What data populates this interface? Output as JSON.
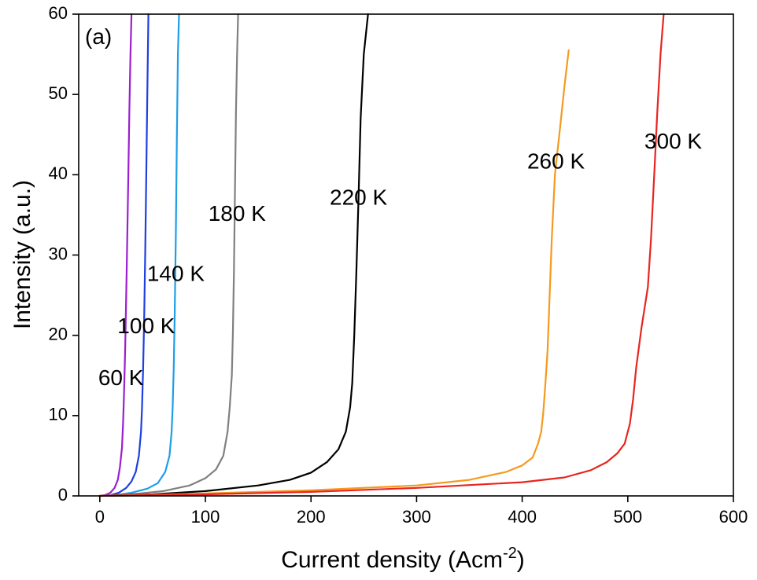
{
  "chart_data": {
    "type": "line",
    "panel_label": "(a)",
    "xlabel": "Current density (Acm",
    "xlabel_sup": "-2",
    "xlabel_end": ")",
    "ylabel": "Intensity (a.u.)",
    "xlim": [
      -20,
      600
    ],
    "ylim": [
      0,
      60
    ],
    "xticks": [
      0,
      100,
      200,
      300,
      400,
      500,
      600
    ],
    "yticks": [
      0,
      10,
      20,
      30,
      40,
      50,
      60
    ],
    "grid": false,
    "series": [
      {
        "name": "60 K",
        "color": "#9b1fd0",
        "label_at": [
          20,
          14.5
        ],
        "points": [
          [
            0,
            0
          ],
          [
            5,
            0.1
          ],
          [
            10,
            0.4
          ],
          [
            14,
            1
          ],
          [
            17,
            2
          ],
          [
            19,
            3.5
          ],
          [
            21,
            6
          ],
          [
            22,
            9
          ],
          [
            23,
            13
          ],
          [
            24,
            18
          ],
          [
            25,
            25
          ],
          [
            26,
            32
          ],
          [
            27,
            40
          ],
          [
            28,
            48
          ],
          [
            29,
            55
          ],
          [
            30,
            60
          ]
        ]
      },
      {
        "name": "100 K",
        "color": "#1f3fe0",
        "label_at": [
          44,
          21
        ],
        "points": [
          [
            0,
            0
          ],
          [
            10,
            0.1
          ],
          [
            18,
            0.4
          ],
          [
            25,
            1
          ],
          [
            30,
            1.8
          ],
          [
            34,
            3
          ],
          [
            37,
            5
          ],
          [
            39,
            8
          ],
          [
            40,
            11
          ],
          [
            41,
            16
          ],
          [
            42,
            22
          ],
          [
            43,
            30
          ],
          [
            44,
            40
          ],
          [
            45,
            50
          ],
          [
            46,
            60
          ]
        ]
      },
      {
        "name": "140 K",
        "color": "#1e9ee8",
        "label_at": [
          72,
          27.5
        ],
        "points": [
          [
            0,
            0
          ],
          [
            15,
            0.1
          ],
          [
            30,
            0.4
          ],
          [
            45,
            0.9
          ],
          [
            55,
            1.6
          ],
          [
            62,
            3
          ],
          [
            66,
            5
          ],
          [
            68,
            8
          ],
          [
            69,
            11
          ],
          [
            70,
            16
          ],
          [
            71,
            23
          ],
          [
            72,
            33
          ],
          [
            73,
            45
          ],
          [
            74,
            55
          ],
          [
            75,
            60
          ]
        ]
      },
      {
        "name": "180 K",
        "color": "#808080",
        "label_at": [
          130,
          35
        ],
        "points": [
          [
            0,
            0
          ],
          [
            30,
            0.2
          ],
          [
            60,
            0.6
          ],
          [
            85,
            1.3
          ],
          [
            100,
            2.2
          ],
          [
            110,
            3.3
          ],
          [
            117,
            5
          ],
          [
            121,
            8
          ],
          [
            123,
            11
          ],
          [
            125,
            15
          ],
          [
            126,
            20
          ],
          [
            127,
            28
          ],
          [
            128,
            38
          ],
          [
            129,
            48
          ],
          [
            130,
            55
          ],
          [
            131,
            60
          ]
        ]
      },
      {
        "name": "220 K",
        "color": "#000000",
        "label_at": [
          245,
          37
        ],
        "points": [
          [
            0,
            0
          ],
          [
            50,
            0.2
          ],
          [
            100,
            0.6
          ],
          [
            150,
            1.3
          ],
          [
            180,
            2
          ],
          [
            200,
            2.9
          ],
          [
            215,
            4.2
          ],
          [
            226,
            5.8
          ],
          [
            233,
            8
          ],
          [
            237,
            11
          ],
          [
            239,
            14
          ],
          [
            241,
            20
          ],
          [
            243,
            28
          ],
          [
            245,
            37
          ],
          [
            247,
            47
          ],
          [
            250,
            55
          ],
          [
            254,
            60
          ]
        ]
      },
      {
        "name": "260 K",
        "color": "#f59a1e",
        "label_at": [
          432,
          41.5
        ],
        "points": [
          [
            0,
            0
          ],
          [
            100,
            0.3
          ],
          [
            200,
            0.7
          ],
          [
            300,
            1.3
          ],
          [
            350,
            2
          ],
          [
            385,
            3
          ],
          [
            400,
            3.8
          ],
          [
            410,
            4.8
          ],
          [
            415,
            6.5
          ],
          [
            418,
            8
          ],
          [
            420,
            10.5
          ],
          [
            422,
            14
          ],
          [
            424,
            18
          ],
          [
            426,
            25
          ],
          [
            428,
            32
          ],
          [
            431,
            40
          ],
          [
            436,
            46
          ],
          [
            440,
            51
          ],
          [
            444,
            55.5
          ]
        ]
      },
      {
        "name": "300 K",
        "color": "#e8251f",
        "label_at": [
          543,
          44
        ],
        "points": [
          [
            0,
            0
          ],
          [
            100,
            0.2
          ],
          [
            200,
            0.5
          ],
          [
            300,
            1
          ],
          [
            400,
            1.7
          ],
          [
            440,
            2.3
          ],
          [
            465,
            3.2
          ],
          [
            480,
            4.2
          ],
          [
            490,
            5.3
          ],
          [
            497,
            6.5
          ],
          [
            502,
            9
          ],
          [
            505,
            12
          ],
          [
            508,
            16
          ],
          [
            513,
            21
          ],
          [
            519,
            26
          ],
          [
            522,
            32
          ],
          [
            525,
            40
          ],
          [
            528,
            48
          ],
          [
            531,
            55
          ],
          [
            534,
            60
          ]
        ]
      }
    ]
  }
}
